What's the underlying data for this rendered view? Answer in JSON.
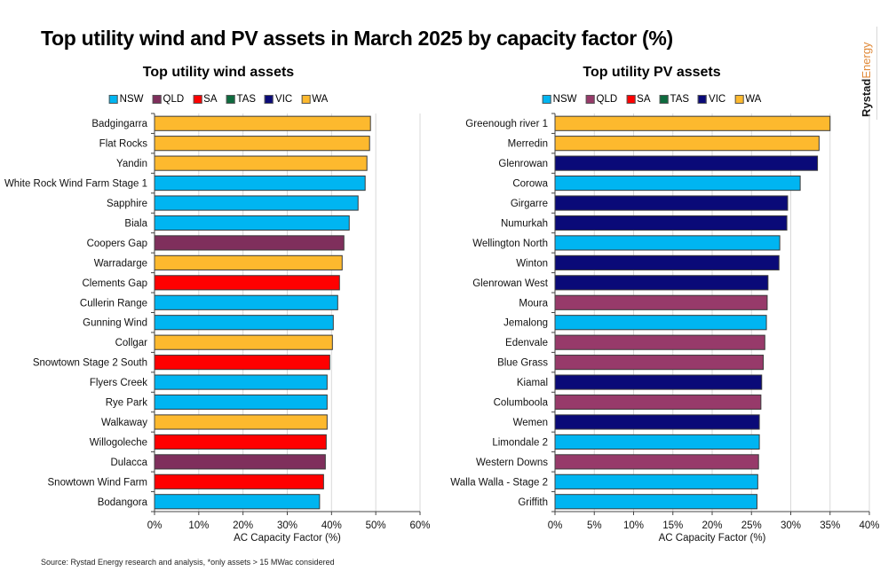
{
  "title": "Top utility wind and PV assets in March 2025 by capacity factor (%)",
  "brand": {
    "part1": "Rystad",
    "part2": "Energy"
  },
  "source": "Source: Rystad Energy research and analysis, *only assets > 15 MWac considered",
  "legend_colors": {
    "NSW": "#00B5F1",
    "QLD": "#7F2F5C",
    "SA": "#FF0000",
    "TAS": "#0E6B3E",
    "VIC": "#0A0A78",
    "WA": "#FDB92E"
  },
  "chart_data": [
    {
      "type": "bar",
      "orientation": "horizontal",
      "title": "Top utility wind assets",
      "xlabel": "AC Capacity Factor (%)",
      "ylabel": "",
      "xlim": [
        0,
        60
      ],
      "xticks": [
        "0%",
        "10%",
        "20%",
        "30%",
        "40%",
        "50%",
        "60%"
      ],
      "grid": true,
      "legend": {
        "position": "top",
        "entries": [
          "NSW",
          "QLD",
          "SA",
          "TAS",
          "VIC",
          "WA"
        ],
        "colors": {
          "NSW": "#00B5F1",
          "QLD": "#7F2F5C",
          "SA": "#FF0000",
          "TAS": "#0E6B3E",
          "VIC": "#0A0A78",
          "WA": "#FDB92E"
        }
      },
      "categories": [
        "Badgingarra",
        "Flat Rocks",
        "Yandin",
        "White Rock Wind Farm Stage 1",
        "Sapphire",
        "Biala",
        "Coopers Gap",
        "Warradarge",
        "Clements Gap",
        "Cullerin Range",
        "Gunning Wind",
        "Collgar",
        "Snowtown Stage 2 South",
        "Flyers Creek",
        "Rye Park",
        "Walkaway",
        "Willogoleche",
        "Dulacca",
        "Snowtown Wind Farm",
        "Bodangora"
      ],
      "values": [
        48.8,
        48.6,
        48.0,
        47.6,
        46.0,
        44.0,
        42.8,
        42.4,
        41.8,
        41.4,
        40.4,
        40.2,
        39.6,
        39.0,
        39.0,
        39.0,
        38.8,
        38.6,
        38.2,
        37.3
      ],
      "states": [
        "WA",
        "WA",
        "WA",
        "NSW",
        "NSW",
        "NSW",
        "QLD",
        "WA",
        "SA",
        "NSW",
        "NSW",
        "WA",
        "SA",
        "NSW",
        "NSW",
        "WA",
        "SA",
        "QLD",
        "SA",
        "NSW"
      ]
    },
    {
      "type": "bar",
      "orientation": "horizontal",
      "title": "Top utility PV assets",
      "xlabel": "AC Capacity Factor (%)",
      "ylabel": "",
      "xlim": [
        0,
        40
      ],
      "xticks": [
        "0%",
        "5%",
        "10%",
        "15%",
        "20%",
        "25%",
        "30%",
        "35%",
        "40%"
      ],
      "grid": true,
      "legend": {
        "position": "top",
        "entries": [
          "NSW",
          "QLD",
          "SA",
          "TAS",
          "VIC",
          "WA"
        ],
        "colors": {
          "NSW": "#00B5F1",
          "QLD": "#973A6A",
          "SA": "#FF0000",
          "TAS": "#0E6B3E",
          "VIC": "#0A0A78",
          "WA": "#FDB92E"
        }
      },
      "categories": [
        "Greenough river 1",
        "Merredin",
        "Glenrowan",
        "Corowa",
        "Girgarre",
        "Numurkah",
        "Wellington North",
        "Winton",
        "Glenrowan West",
        "Moura",
        "Jemalong",
        "Edenvale",
        "Blue Grass",
        "Kiamal",
        "Columboola",
        "Wemen",
        "Limondale 2",
        "Western Downs",
        "Walla Walla - Stage 2",
        "Griffith"
      ],
      "values": [
        35.0,
        33.6,
        33.4,
        31.2,
        29.6,
        29.5,
        28.6,
        28.5,
        27.1,
        27.0,
        26.9,
        26.7,
        26.5,
        26.3,
        26.2,
        26.0,
        26.0,
        25.9,
        25.8,
        25.7
      ],
      "states": [
        "WA",
        "WA",
        "VIC",
        "NSW",
        "VIC",
        "VIC",
        "NSW",
        "VIC",
        "VIC",
        "QLD",
        "NSW",
        "QLD",
        "QLD",
        "VIC",
        "QLD",
        "VIC",
        "NSW",
        "QLD",
        "NSW",
        "NSW"
      ]
    }
  ]
}
